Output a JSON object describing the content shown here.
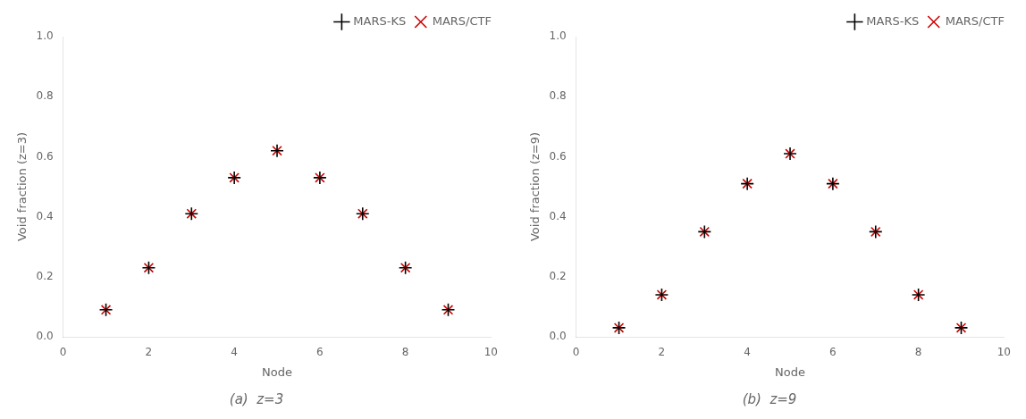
{
  "chart_data": [
    {
      "type": "scatter",
      "title": "(a)  z=3",
      "x_label": "Node",
      "y_label": "Void fraction (z=3)",
      "x": [
        1,
        2,
        3,
        4,
        5,
        6,
        7,
        8,
        9
      ],
      "series": [
        {
          "name": "MARS-KS",
          "color": "#000000",
          "marker": "+",
          "values": [
            0.09,
            0.23,
            0.41,
            0.53,
            0.62,
            0.53,
            0.41,
            0.23,
            0.09
          ]
        },
        {
          "name": "MARS/CTF",
          "color": "#cc0000",
          "marker": "x",
          "values": [
            0.09,
            0.23,
            0.41,
            0.53,
            0.62,
            0.53,
            0.41,
            0.23,
            0.09
          ]
        }
      ],
      "xlim": [
        0,
        10
      ],
      "ylim": [
        0.0,
        1.0
      ],
      "xticks": [
        0,
        2,
        4,
        6,
        8,
        10
      ],
      "yticks": [
        {
          "value": 0.0,
          "label": "0.0"
        },
        0.2,
        0.4,
        0.6,
        0.8,
        {
          "value": 1.0,
          "label": "1.0"
        }
      ],
      "grid": false,
      "legend": "upper right"
    },
    {
      "type": "scatter",
      "title": "(b)  z=9",
      "x_label": "Node",
      "y_label": "Void fraction (z=9)",
      "x": [
        1,
        2,
        3,
        4,
        5,
        6,
        7,
        8,
        9
      ],
      "series": [
        {
          "name": "MARS-KS",
          "color": "#000000",
          "marker": "+",
          "values": [
            0.03,
            0.14,
            0.35,
            0.51,
            0.61,
            0.51,
            0.35,
            0.14,
            0.03
          ]
        },
        {
          "name": "MARS/CTF",
          "color": "#cc0000",
          "marker": "x",
          "values": [
            0.03,
            0.14,
            0.35,
            0.51,
            0.61,
            0.51,
            0.35,
            0.14,
            0.03
          ]
        }
      ],
      "xlim": [
        0,
        10
      ],
      "ylim": [
        0.0,
        1.0
      ],
      "xticks": [
        0,
        2,
        4,
        6,
        8,
        10
      ],
      "yticks": [
        {
          "value": 0.0,
          "label": "0.0"
        },
        0.2,
        0.4,
        0.6,
        0.8,
        {
          "value": 1.0,
          "label": "1.0"
        }
      ],
      "grid": false,
      "legend": "upper right"
    }
  ]
}
